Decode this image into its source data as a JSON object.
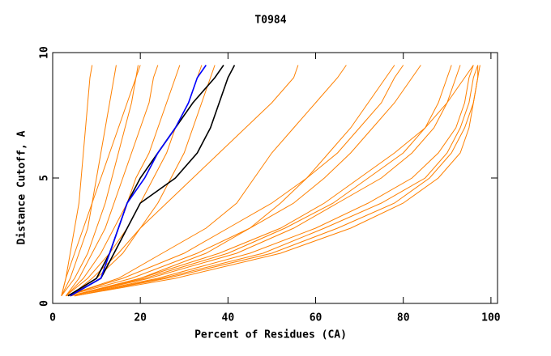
{
  "chart_data": {
    "type": "line",
    "title": "T0984",
    "x_label": "Percent of Residues (CA)",
    "y_label": "Distance Cutoff, A",
    "xlim": [
      0,
      101.5
    ],
    "ylim": [
      0,
      10
    ],
    "xticks": [
      0,
      20,
      40,
      60,
      80,
      100
    ],
    "yticks": [
      0,
      5,
      10
    ],
    "y": [
      0.3,
      1,
      2,
      3,
      4,
      5,
      6,
      7,
      8,
      9,
      9.5
    ],
    "series": [
      {
        "color": "#ff8000",
        "x": [
          2,
          3,
          4,
          5,
          6,
          6.5,
          7,
          7.5,
          8,
          8.5,
          9
        ]
      },
      {
        "color": "#ff8000",
        "x": [
          2,
          4,
          6,
          8,
          9,
          10,
          11,
          12,
          13,
          14,
          14.5
        ]
      },
      {
        "color": "#ff8000",
        "x": [
          2,
          5,
          8,
          10,
          12,
          13.5,
          15,
          16.5,
          18,
          19,
          19.5
        ]
      },
      {
        "color": "#ff8000",
        "x": [
          3,
          6,
          9,
          12,
          14,
          16,
          18,
          20,
          22,
          23,
          24
        ]
      },
      {
        "color": "#ff8000",
        "x": [
          3,
          7,
          11,
          14,
          17,
          19,
          22,
          24,
          26,
          28,
          29
        ]
      },
      {
        "color": "#ff8000",
        "x": [
          3,
          8,
          13,
          17,
          20,
          23,
          26,
          28,
          31,
          33,
          34
        ]
      },
      {
        "color": "#ff8000",
        "x": [
          4,
          9,
          15,
          20,
          24,
          27,
          30,
          32,
          34,
          36,
          37
        ]
      },
      {
        "color": "#ff8000",
        "x": [
          2,
          3,
          5,
          7,
          9,
          11,
          13,
          15,
          17,
          19,
          20
        ]
      },
      {
        "color": "#ff8000",
        "x": [
          4,
          10,
          16,
          20,
          26,
          32,
          38,
          44,
          50,
          55,
          56
        ]
      },
      {
        "color": "#ff8000",
        "x": [
          3,
          15,
          25,
          35,
          42,
          46,
          50,
          55,
          60,
          65,
          67
        ]
      },
      {
        "color": "#ff8000",
        "x": [
          4,
          20,
          35,
          45,
          52,
          58,
          63,
          68,
          72,
          76,
          78
        ]
      },
      {
        "color": "#ff8000",
        "x": [
          4,
          22,
          42,
          55,
          65,
          75,
          82,
          87,
          90,
          92,
          93
        ]
      },
      {
        "color": "#ff8000",
        "x": [
          5,
          25,
          48,
          62,
          75,
          85,
          90,
          93,
          95,
          96,
          97
        ]
      },
      {
        "color": "#ff8000",
        "x": [
          5,
          28,
          52,
          68,
          80,
          88,
          93,
          95,
          96,
          97,
          97.5
        ]
      },
      {
        "color": "#ff8000",
        "x": [
          4,
          20,
          38,
          52,
          62,
          70,
          78,
          85,
          90,
          94,
          96
        ]
      },
      {
        "color": "#ff8000",
        "x": [
          3,
          18,
          33,
          45,
          55,
          62,
          68,
          73,
          78,
          82,
          84
        ]
      },
      {
        "color": "#ff8000",
        "x": [
          4,
          24,
          45,
          60,
          72,
          82,
          88,
          92,
          94,
          95,
          96
        ]
      },
      {
        "color": "#ff8000",
        "x": [
          3,
          16,
          30,
          40,
          50,
          58,
          65,
          70,
          75,
          78,
          80
        ]
      },
      {
        "color": "#ff8000",
        "x": [
          4,
          21,
          40,
          53,
          64,
          72,
          80,
          85,
          88,
          90,
          91
        ]
      },
      {
        "color": "#ff8000",
        "x": [
          5,
          26,
          50,
          65,
          78,
          86,
          91,
          94,
          96,
          97,
          97
        ]
      },
      {
        "color": "#000000",
        "x": [
          3.5,
          10,
          13,
          15,
          17,
          20,
          24,
          28,
          32,
          37,
          39
        ]
      },
      {
        "color": "#000000",
        "x": [
          4,
          11,
          14,
          17,
          20,
          28,
          33,
          36,
          38,
          40,
          41.5
        ]
      },
      {
        "color": "#0000ff",
        "x": [
          4,
          11,
          13,
          15,
          17,
          21,
          24,
          28,
          31,
          33,
          35
        ]
      }
    ]
  }
}
